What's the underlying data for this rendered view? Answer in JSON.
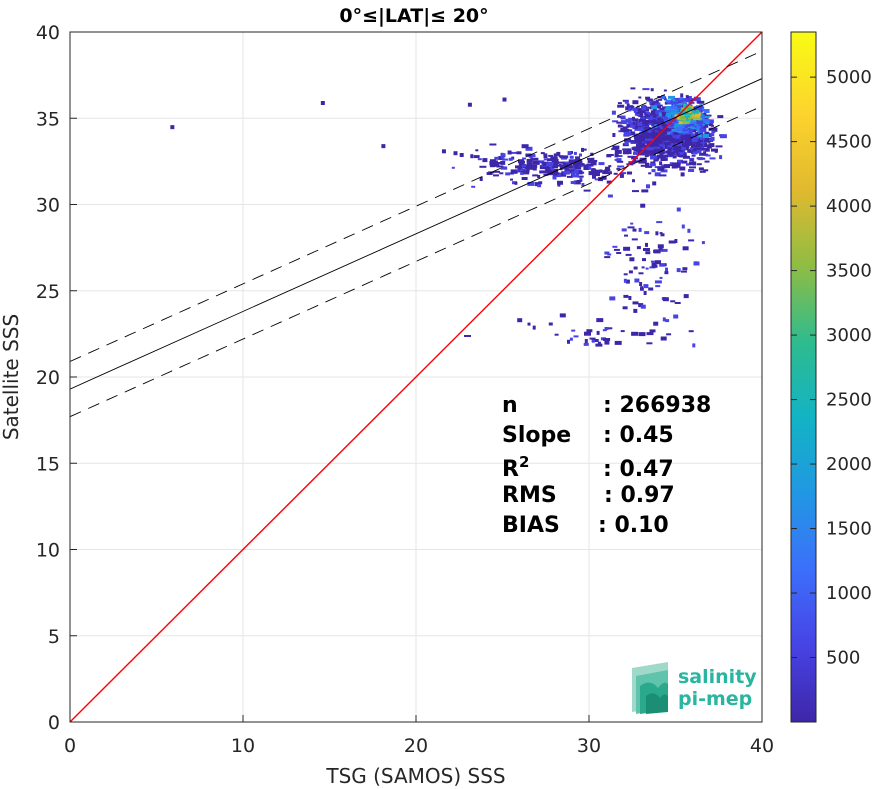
{
  "chart_data": {
    "type": "heatmap",
    "title": "0°≤|LAT|≤ 20°",
    "xlabel": "TSG (SAMOS) SSS",
    "ylabel": "Satellite SSS",
    "xlim": [
      0,
      40
    ],
    "ylim": [
      0,
      40
    ],
    "xticks": [
      "0",
      "10",
      "20",
      "30",
      "40"
    ],
    "yticks": [
      "0",
      "5",
      "10",
      "15",
      "20",
      "25",
      "30",
      "35",
      "40"
    ],
    "grid": true,
    "reference_line": {
      "name": "1:1",
      "color": "#ff0000",
      "x": [
        0,
        40
      ],
      "y": [
        0,
        40
      ]
    },
    "regression": {
      "intercept": 19.3,
      "slope": 0.45,
      "color": "#000000"
    },
    "regression_band_offset": 1.6,
    "stats": [
      {
        "label": "n",
        "value": ": 266938"
      },
      {
        "label": "Slope",
        "value": ": 0.45"
      },
      {
        "label": "R",
        "sup": "2",
        "value": ": 0.47"
      },
      {
        "label": "RMS",
        "value": ": 0.97"
      },
      {
        "label": "BIAS",
        "value": ": 0.10"
      }
    ],
    "colorbar": {
      "min": 0,
      "max": 5350,
      "ticks": [
        "500",
        "1000",
        "1500",
        "2000",
        "2500",
        "3000",
        "3500",
        "4000",
        "4500",
        "5000"
      ],
      "colormap": [
        "#3e26a8",
        "#4743e4",
        "#3c6ffb",
        "#2197e3",
        "#13b3c5",
        "#2ebb8e",
        "#8ebd44",
        "#e0b92f",
        "#fcd32d",
        "#f9fb15"
      ]
    },
    "density_clusters": [
      {
        "x": 34.5,
        "y": 34.3,
        "sx": 1.7,
        "sy": 1.3,
        "n": 1100,
        "level": "low"
      },
      {
        "x": 35.4,
        "y": 35.1,
        "sx": 0.9,
        "sy": 0.7,
        "n": 260,
        "level": "mid"
      },
      {
        "x": 35.6,
        "y": 35.3,
        "sx": 0.35,
        "sy": 0.3,
        "n": 60,
        "level": "high"
      },
      {
        "x": 28,
        "y": 32.3,
        "sx": 3.2,
        "sy": 0.7,
        "n": 260,
        "level": "low"
      },
      {
        "x": 33.5,
        "y": 27,
        "sx": 1.8,
        "sy": 3,
        "n": 95,
        "level": "low"
      },
      {
        "x": 30.5,
        "y": 22.5,
        "sx": 3.5,
        "sy": 0.8,
        "n": 40,
        "level": "low"
      }
    ],
    "outliers": [
      [
        5.8,
        34.6
      ],
      [
        14.5,
        36
      ],
      [
        23,
        35.9
      ],
      [
        25,
        36.2
      ],
      [
        18,
        33.5
      ],
      [
        21.5,
        33.2
      ]
    ]
  },
  "logo": {
    "line1": "salinity",
    "line2": "pi-mep"
  }
}
